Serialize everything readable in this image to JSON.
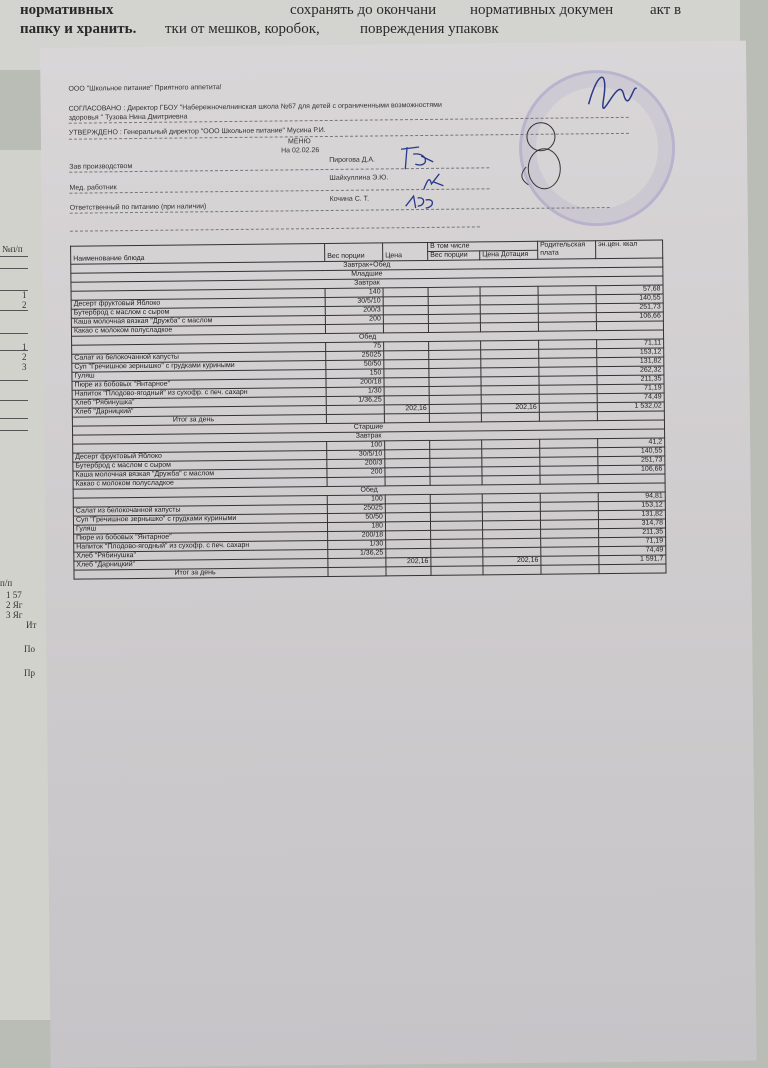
{
  "background_sheet": {
    "lines": [
      "нормативных",
      "папку и хранить.",
      "тки от мешков, коробок,",
      "сохранять до окончани",
      "повреждения упаковк",
      "нормативных докумен",
      "акт в"
    ]
  },
  "left_sheet": {
    "labels": [
      "№п/п",
      "1",
      "2",
      "1",
      "2",
      "3",
      "п/п",
      "1 57",
      "2 Яг",
      "3 Яг",
      "Ит",
      "По",
      "Пр"
    ]
  },
  "header": {
    "org": "ООО \"Школьное питание\" Приятного аппетита!",
    "agreed": "СОГЛАСОВАНО : Директор ГБОУ \"Набережночелнинская школа №67 для детей  с ограниченными возможностями",
    "agreed2": "здоровья \" Тузова Нина Дмитриевна",
    "approved": "УТВЕРЖДЕНО : Генеральный директор \"ООО Школьное питание\" Мусина Р.И.",
    "title": "МЕНЮ",
    "date": "На 02.02.26",
    "signers": [
      {
        "role": "Зав производством",
        "name": "Пирогова Д.А."
      },
      {
        "role": "Мед. работник",
        "name": "Шайхуллина Э.Ю."
      },
      {
        "role": "Ответственный по питанию (при наличии)",
        "name": "Кочина С. Т."
      }
    ]
  },
  "table": {
    "columns": {
      "name": "Наименование блюда",
      "weight": "Вес порции",
      "price": "Цена",
      "incl": "В том числе",
      "incl_weight": "Вес порции",
      "incl_price": "Цена Дотация",
      "parent": "Родительская плата",
      "kcal": "эн.цен. ккал"
    },
    "meal_type": "Завтрак+Обед",
    "groups": [
      {
        "title": "Младшие",
        "sections": [
          {
            "title": "Завтрак",
            "rows": [
              [
                "",
                "140",
                "",
                "",
                "",
                "",
                "57,68"
              ],
              [
                "Десерт фруктовый Яблоко",
                "30/5/10",
                "",
                "",
                "",
                "",
                "140,55"
              ],
              [
                "Бутерброд с маслом с сыром",
                "200/3",
                "",
                "",
                "",
                "",
                "251,73"
              ],
              [
                "Каша молочная вязкая  \"Дружба\" с маслом",
                "200",
                "",
                "",
                "",
                "",
                "106,66"
              ],
              [
                "Какао с молоком полусладкое",
                "",
                "",
                "",
                "",
                "",
                ""
              ]
            ]
          },
          {
            "title": "Обед",
            "rows": [
              [
                "",
                "75",
                "",
                "",
                "",
                "",
                "71,11"
              ],
              [
                "Салат из белокочанной капусты",
                "25025",
                "",
                "",
                "",
                "",
                "153,12"
              ],
              [
                "Суп \"Гречишное зернышко\" с грудками куриными",
                "50/50",
                "",
                "",
                "",
                "",
                "131,82"
              ],
              [
                "Гуляш",
                "150",
                "",
                "",
                "",
                "",
                "262,32"
              ],
              [
                "Пюре из бобовых \"Янтарное\"",
                "200/18",
                "",
                "",
                "",
                "",
                "211,35"
              ],
              [
                "Напиток \"Плодово-ягодный\" из сухофр. с печ. сахарн",
                "1/30",
                "",
                "",
                "",
                "",
                "71,19"
              ],
              [
                "Хлеб \"Рябинушка\"",
                "1/36,25",
                "",
                "",
                "",
                "",
                "74,49"
              ],
              [
                "Хлеб \"Дарницкий\"",
                "",
                "202,16",
                "",
                "202,16",
                "",
                "1 532,02"
              ]
            ]
          }
        ],
        "total": "Итог за день"
      },
      {
        "title": "Старшие",
        "sections": [
          {
            "title": "Завтрак",
            "rows": [
              [
                "",
                "100",
                "",
                "",
                "",
                "",
                "41,2"
              ],
              [
                "Десерт фруктовый Яблоко",
                "30/5/10",
                "",
                "",
                "",
                "",
                "140,55"
              ],
              [
                "Бутерброд с маслом с сыром",
                "200/3",
                "",
                "",
                "",
                "",
                "251,73"
              ],
              [
                "Каша молочная вязкая  \"Дружба\" с маслом",
                "200",
                "",
                "",
                "",
                "",
                "106,66"
              ],
              [
                "Какао с молоком полусладкое",
                "",
                "",
                "",
                "",
                "",
                ""
              ]
            ]
          },
          {
            "title": "Обед",
            "rows": [
              [
                "",
                "100",
                "",
                "",
                "",
                "",
                "94,81"
              ],
              [
                "Салат из белокочанной капусты",
                "25025",
                "",
                "",
                "",
                "",
                "153,12"
              ],
              [
                "Суп \"Гречишное зернышко\" с грудками куриными",
                "50/50",
                "",
                "",
                "",
                "",
                "131,82"
              ],
              [
                "Гуляш",
                "180",
                "",
                "",
                "",
                "",
                "314,78"
              ],
              [
                "Пюре из бобовых \"Янтарное\"",
                "200/18",
                "",
                "",
                "",
                "",
                "211,35"
              ],
              [
                "Напиток \"Плодово-ягодный\" из сухофр. с печ. сахарн",
                "1/30",
                "",
                "",
                "",
                "",
                "71,19"
              ],
              [
                "Хлеб \"Рябинушка\"",
                "1/36,25",
                "",
                "",
                "",
                "",
                "74,49"
              ],
              [
                "Хлеб \"Дарницкий\"",
                "",
                "202,16",
                "",
                "202,16",
                "",
                "1 591,7"
              ]
            ]
          }
        ],
        "total": "Итог за день"
      }
    ]
  },
  "colors": {
    "paper": "#d6d3d5",
    "stamp": "#8278be",
    "signature": "#2a3a8a"
  }
}
